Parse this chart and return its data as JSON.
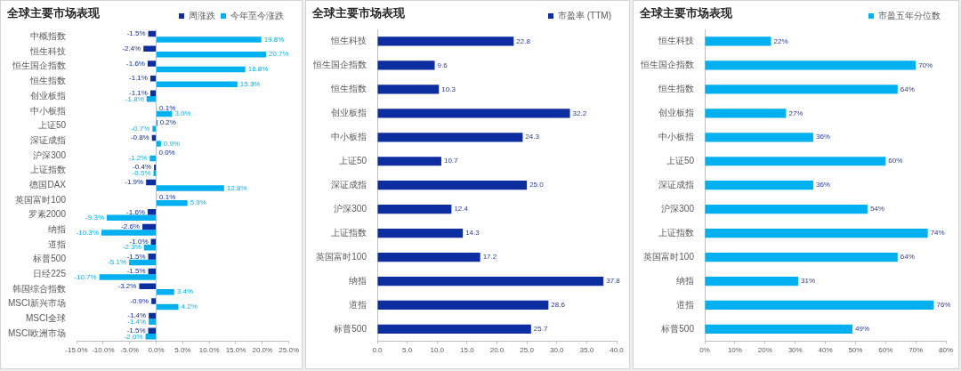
{
  "chart_data": [
    {
      "type": "bar",
      "orientation": "horizontal",
      "title": "全球主要市场表现",
      "legend": "top right",
      "categories": [
        "中概指数",
        "恒生科技",
        "恒生国企指数",
        "恒生指数",
        "创业板指",
        "中小板指",
        "上证50",
        "深证成指",
        "沪深300",
        "上证指数",
        "德国DAX",
        "英国富时100",
        "罗素2000",
        "纳指",
        "道指",
        "标普500",
        "日经225",
        "韩国综合指数",
        "MSCI新兴市场",
        "MSCI全球",
        "MSCI欧洲市场"
      ],
      "series": [
        {
          "name": "周涨跌",
          "color": "#0d2ea0",
          "values": [
            -1.5,
            -2.4,
            -1.6,
            -1.1,
            -1.1,
            0.1,
            0.2,
            -0.8,
            0.0,
            -0.4,
            -1.9,
            0.1,
            -1.6,
            -2.6,
            -1.0,
            -1.5,
            -1.5,
            -3.2,
            -0.9,
            -1.4,
            -1.5
          ],
          "value_labels": [
            "-1.5%",
            "-2.4%",
            "-1.6%",
            "-1.1%",
            "-1.1%",
            "0.1%",
            "0.2%",
            "-0.8%",
            "0.0%",
            "-0.4%",
            "-1.9%",
            "0.1%",
            "-1.6%",
            "-2.6%",
            "-1.0%",
            "-1.5%",
            "-1.5%",
            "-3.2%",
            "-0.9%",
            "-1.4%",
            "-1.5%"
          ]
        },
        {
          "name": "今年至今涨跌",
          "color": "#00b0f0",
          "values": [
            19.8,
            20.7,
            16.8,
            15.3,
            -1.8,
            3.0,
            -0.7,
            0.9,
            -1.2,
            -0.5,
            12.8,
            5.9,
            -9.3,
            -10.3,
            -2.3,
            -5.1,
            -10.7,
            3.4,
            4.2,
            -1.4,
            -2.0
          ],
          "value_labels": [
            "19.8%",
            "20.7%",
            "16.8%",
            "15.3%",
            "-1.8%",
            "3.0%",
            "-0.7%",
            "0.9%",
            "-1.2%",
            "-0.5%",
            "12.8%",
            "5.9%",
            "-9.3%",
            "-10.3%",
            "-2.3%",
            "-5.1%",
            "-10.7%",
            "3.4%",
            "4.2%",
            "-1.4%",
            "-2.0%"
          ]
        }
      ],
      "xlim": [
        -15,
        25
      ],
      "xticks": [
        {
          "value": -15,
          "label": "-15.0%"
        },
        {
          "value": -10,
          "label": "-10.0%"
        },
        {
          "value": -5,
          "label": "-5.0%"
        },
        {
          "value": 0,
          "label": "0.0%"
        },
        {
          "value": 5,
          "label": "5.0%"
        },
        {
          "value": 10,
          "label": "10.0%"
        },
        {
          "value": 15,
          "label": "15.0%"
        },
        {
          "value": 20,
          "label": "20.0%"
        },
        {
          "value": 25,
          "label": "25.0%"
        }
      ]
    },
    {
      "type": "bar",
      "orientation": "horizontal",
      "title": "全球主要市场表现",
      "legend": "top right",
      "categories": [
        "恒生科技",
        "恒生国企指数",
        "恒生指数",
        "创业板指",
        "中小板指",
        "上证50",
        "深证成指",
        "沪深300",
        "上证指数",
        "英国富时100",
        "纳指",
        "道指",
        "标普500"
      ],
      "series": [
        {
          "name": "市盈率 (TTM)",
          "color": "#0d2ea0",
          "values": [
            22.8,
            9.6,
            10.3,
            32.2,
            24.3,
            10.7,
            25.0,
            12.4,
            14.3,
            17.2,
            37.8,
            28.6,
            25.7
          ],
          "value_labels": [
            "22.8",
            "9.6",
            "10.3",
            "32.2",
            "24.3",
            "10.7",
            "25.0",
            "12.4",
            "14.3",
            "17.2",
            "37.8",
            "28.6",
            "25.7"
          ]
        }
      ],
      "xlim": [
        0,
        40
      ],
      "xticks": [
        {
          "value": 0,
          "label": "0.0"
        },
        {
          "value": 5,
          "label": "5.0"
        },
        {
          "value": 10,
          "label": "10.0"
        },
        {
          "value": 15,
          "label": "15.0"
        },
        {
          "value": 20,
          "label": "20.0"
        },
        {
          "value": 25,
          "label": "25.0"
        },
        {
          "value": 30,
          "label": "30.0"
        },
        {
          "value": 35,
          "label": "35.0"
        },
        {
          "value": 40,
          "label": "40.0"
        }
      ]
    },
    {
      "type": "bar",
      "orientation": "horizontal",
      "title": "全球主要市场表现",
      "legend": "top right",
      "categories": [
        "恒生科技",
        "恒生国企指数",
        "恒生指数",
        "创业板指",
        "中小板指",
        "上证50",
        "深证成指",
        "沪深300",
        "上证指数",
        "英国富时100",
        "纳指",
        "道指",
        "标普500"
      ],
      "series": [
        {
          "name": "市盈五年分位数",
          "color": "#00b0f0",
          "values": [
            22,
            70,
            64,
            27,
            36,
            60,
            36,
            54,
            74,
            64,
            31,
            76,
            49
          ],
          "value_labels": [
            "22%",
            "70%",
            "64%",
            "27%",
            "36%",
            "60%",
            "36%",
            "54%",
            "74%",
            "64%",
            "31%",
            "76%",
            "49%"
          ]
        }
      ],
      "xlim": [
        0,
        80
      ],
      "xticks": [
        {
          "value": 0,
          "label": "0%"
        },
        {
          "value": 10,
          "label": "10%"
        },
        {
          "value": 20,
          "label": "20%"
        },
        {
          "value": 30,
          "label": "30%"
        },
        {
          "value": 40,
          "label": "40%"
        },
        {
          "value": 50,
          "label": "50%"
        },
        {
          "value": 60,
          "label": "60%"
        },
        {
          "value": 70,
          "label": "70%"
        },
        {
          "value": 80,
          "label": "80%"
        }
      ]
    }
  ]
}
